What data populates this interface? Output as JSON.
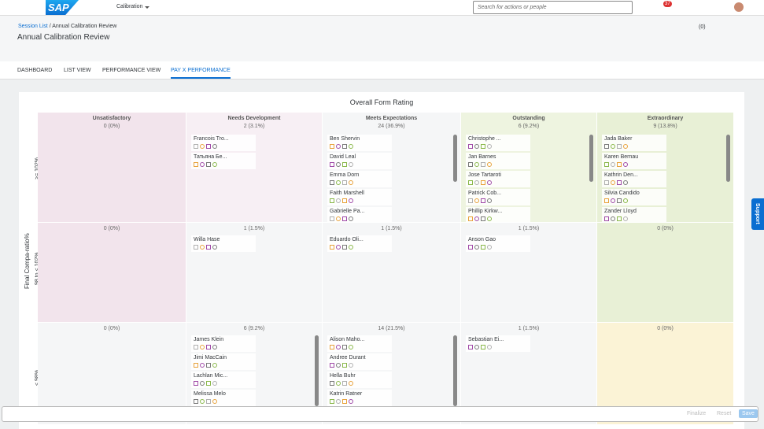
{
  "shell": {
    "logo": "SAP",
    "app": "Calibration",
    "search": "Search for actions or people",
    "badge": "37"
  },
  "header": {
    "breadcrumb": [
      "Session List",
      "Annual Calibration Review"
    ],
    "title": "Annual Calibration Review",
    "filter_count": "(0)"
  },
  "tabs": [
    "DASHBOARD",
    "LIST VIEW",
    "PERFORMANCE VIEW",
    "PAY X PERFORMANCE"
  ],
  "matrix": {
    "x_title": "Overall Form Rating",
    "y_title": "Final Compa-ratio%",
    "columns": [
      {
        "name": "Unsatisfactory",
        "count": "0 (0%)"
      },
      {
        "name": "Needs Development",
        "count": "2 (3.1%)"
      },
      {
        "name": "Meets Expectations",
        "count": "24 (36.9%)"
      },
      {
        "name": "Outstanding",
        "count": "6 (9.2%)"
      },
      {
        "name": "Extraordinary",
        "count": "9 (13.8%)"
      }
    ],
    "rows": [
      {
        "label": ">= 102%",
        "cells": [
          {
            "employees": []
          },
          {
            "employees": [
              "Francois Tro...",
              "Татьяна Бе..."
            ]
          },
          {
            "employees": [
              "Ben Shervin",
              "David Leal",
              "Emma Dorn",
              "Faith Marshell",
              "Gabrielle Pa..."
            ]
          },
          {
            "employees": [
              "Christophe ...",
              "Jan Barnes",
              "Jose Tartaroti",
              "Patrick Cob...",
              "Phillip Kirkw..."
            ]
          },
          {
            "employees": [
              "Jada Baker",
              "Karen Bernau",
              "Kathrin Den...",
              "Silvia Candido",
              "Zander Lloyd"
            ]
          }
        ]
      },
      {
        "label": "98 to < 102%",
        "cells": [
          {
            "count": "0 (0%)",
            "employees": []
          },
          {
            "count": "1 (1.5%)",
            "employees": [
              "Willa Hase"
            ]
          },
          {
            "count": "1 (1.5%)",
            "employees": [
              "Eduardo Oli..."
            ]
          },
          {
            "count": "1 (1.5%)",
            "employees": [
              "Anson Gao"
            ]
          },
          {
            "count": "0 (0%)",
            "employees": []
          }
        ]
      },
      {
        "label": "< 98%",
        "cells": [
          {
            "count": "0 (0%)",
            "employees": []
          },
          {
            "count": "6 (9.2%)",
            "employees": [
              "James Klein",
              "Jimi MacCain",
              "Lachlan Mic...",
              "Melissa Melo"
            ]
          },
          {
            "count": "14 (21.5%)",
            "employees": [
              "Alison Maho...",
              "Andree Durant",
              "Hella Buhr",
              "Katrin Ratner"
            ]
          },
          {
            "count": "1 (1.5%)",
            "employees": [
              "Sebastian Ei..."
            ]
          },
          {
            "count": "0 (0%)",
            "employees": []
          }
        ]
      }
    ]
  },
  "footer": {
    "buttons": [
      "Finalize",
      "Reset",
      "Save"
    ]
  },
  "support": "Support"
}
